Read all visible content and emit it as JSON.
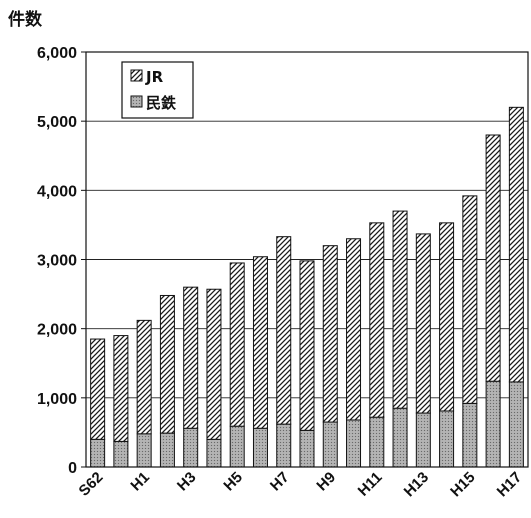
{
  "chart_data": {
    "type": "bar",
    "stacked": true,
    "ylabel": "件数",
    "ylim": [
      0,
      6000
    ],
    "yticks": [
      0,
      1000,
      2000,
      3000,
      4000,
      5000,
      6000
    ],
    "ytick_labels": [
      "0",
      "1,000",
      "2,000",
      "3,000",
      "4,000",
      "5,000",
      "6,000"
    ],
    "grid": true,
    "legend": "top-left",
    "categories": [
      "S62",
      "",
      "H1",
      "",
      "H3",
      "",
      "H5",
      "",
      "H7",
      "",
      "H9",
      "",
      "H11",
      "",
      "H13",
      "",
      "H15",
      "",
      "H17"
    ],
    "series": [
      {
        "name": "JR",
        "color": "#ffffff",
        "pattern_color": "#1a1a1a",
        "values": [
          1450,
          1530,
          1640,
          1990,
          2040,
          2170,
          2360,
          2480,
          2710,
          2450,
          2550,
          2620,
          2810,
          2850,
          2590,
          2720,
          3000,
          3560,
          3970
        ]
      },
      {
        "name": "民鉄",
        "color": "#b4b4b4",
        "pattern_color": "#6a6a6a",
        "values": [
          400,
          370,
          480,
          490,
          560,
          400,
          590,
          560,
          620,
          530,
          650,
          680,
          720,
          850,
          780,
          810,
          920,
          1240,
          1230
        ]
      }
    ]
  }
}
